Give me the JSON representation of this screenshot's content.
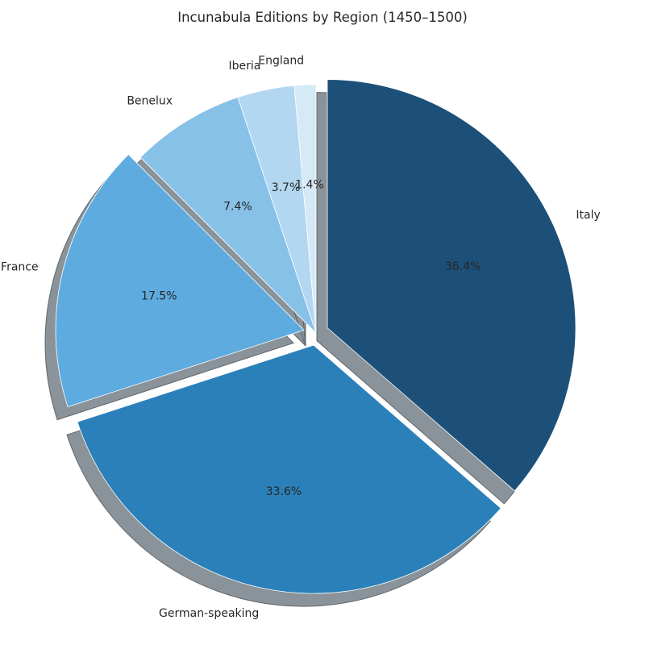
{
  "chart_data": {
    "type": "pie",
    "title": "Incunabula Editions by Region (1450–1500)",
    "start_angle_deg": 90,
    "direction": "clockwise",
    "shadow": true,
    "categories": [
      "Italy",
      "German-speaking",
      "France",
      "Benelux",
      "Iberia",
      "England"
    ],
    "values": [
      36.4,
      33.6,
      17.5,
      7.4,
      3.7,
      1.4
    ],
    "value_labels": [
      "36.4%",
      "33.6%",
      "17.5%",
      "7.4%",
      "3.7%",
      "1.4%"
    ],
    "exploded": [
      true,
      true,
      true,
      false,
      false,
      false
    ],
    "colors": [
      "#1c5078",
      "#2b80ba",
      "#5dabdf",
      "#87c1e8",
      "#b3d7f0",
      "#d6e9f7"
    ],
    "edge_color": "#ffffff",
    "shadow_color": "#8a9399"
  }
}
